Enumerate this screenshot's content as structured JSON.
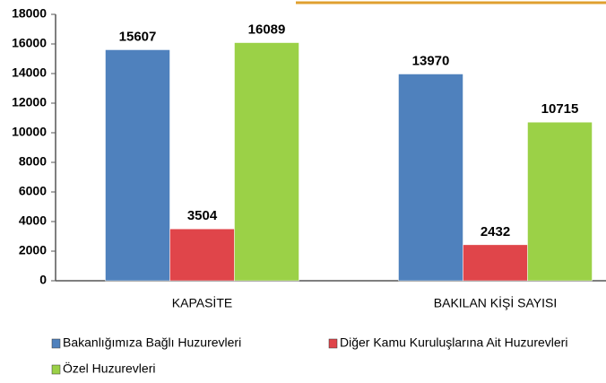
{
  "chart_data": {
    "type": "bar",
    "categories": [
      "KAPASİTE",
      "BAKILAN KİŞİ SAYISI"
    ],
    "series": [
      {
        "name": "Bakanlığımıza Bağlı Huzurevleri",
        "color": "#4f81bd",
        "values": [
          15607,
          13970
        ]
      },
      {
        "name": "Diğer Kamu Kuruluşlarına Ait Huzurevleri",
        "color": "#e0454a",
        "values": [
          3504,
          2432
        ]
      },
      {
        "name": "Özel Huzurevleri",
        "color": "#9bd147",
        "values": [
          16089,
          10715
        ]
      }
    ],
    "ylim": [
      0,
      18000
    ],
    "yticks": [
      0,
      2000,
      4000,
      6000,
      8000,
      10000,
      12000,
      14000,
      16000,
      18000
    ],
    "grid": false
  }
}
